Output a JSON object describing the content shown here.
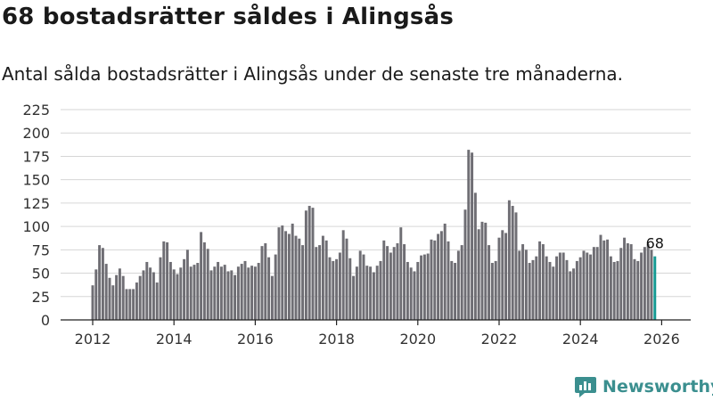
{
  "title": "68 bostadsrätter såldes i Alingsås",
  "subtitle": "Antal sålda bostadsrätter i Alingsås under de senaste tre månaderna.",
  "brand": {
    "name": "Newsworthy"
  },
  "colors": {
    "bar": "#6f6e74",
    "highlight": "#159a93",
    "grid": "#d6d6d6",
    "axis": "#222222",
    "brand": "#3b8f8f"
  },
  "chart_data": {
    "type": "bar",
    "title": "68 bostadsrätter såldes i Alingsås",
    "subtitle": "Antal sålda bostadsrätter i Alingsås under de senaste tre månaderna.",
    "xlabel": "",
    "ylabel": "",
    "ylim": [
      0,
      225
    ],
    "yticks": [
      0,
      25,
      50,
      75,
      100,
      125,
      150,
      175,
      200,
      225
    ],
    "xticks": [
      "2012",
      "2014",
      "2016",
      "2018",
      "2020",
      "2022",
      "2024",
      "2026"
    ],
    "x_start": 2012.0,
    "x_step_years": 0.08333,
    "grid": true,
    "highlight_label": "68",
    "values": [
      37,
      54,
      80,
      77,
      60,
      45,
      37,
      48,
      55,
      47,
      33,
      33,
      33,
      40,
      47,
      53,
      62,
      56,
      51,
      40,
      67,
      84,
      83,
      62,
      54,
      49,
      56,
      65,
      75,
      57,
      59,
      61,
      94,
      83,
      76,
      53,
      57,
      62,
      57,
      59,
      52,
      53,
      48,
      57,
      60,
      63,
      56,
      58,
      57,
      61,
      79,
      82,
      67,
      47,
      70,
      99,
      101,
      95,
      92,
      103,
      90,
      87,
      80,
      117,
      122,
      120,
      78,
      80,
      90,
      85,
      67,
      63,
      65,
      72,
      96,
      87,
      66,
      47,
      57,
      74,
      70,
      58,
      57,
      51,
      58,
      63,
      85,
      79,
      72,
      78,
      82,
      99,
      81,
      62,
      56,
      52,
      62,
      69,
      70,
      71,
      86,
      85,
      92,
      95,
      103,
      84,
      63,
      61,
      74,
      80,
      118,
      182,
      179,
      136,
      97,
      105,
      104,
      80,
      61,
      63,
      88,
      96,
      93,
      128,
      122,
      115,
      74,
      81,
      75,
      61,
      64,
      68,
      84,
      81,
      68,
      62,
      57,
      68,
      72,
      72,
      64,
      52,
      55,
      63,
      67,
      74,
      72,
      70,
      78,
      78,
      91,
      85,
      86,
      68,
      62,
      63,
      77,
      88,
      82,
      81,
      65,
      63,
      72,
      78,
      81,
      75,
      68
    ]
  }
}
